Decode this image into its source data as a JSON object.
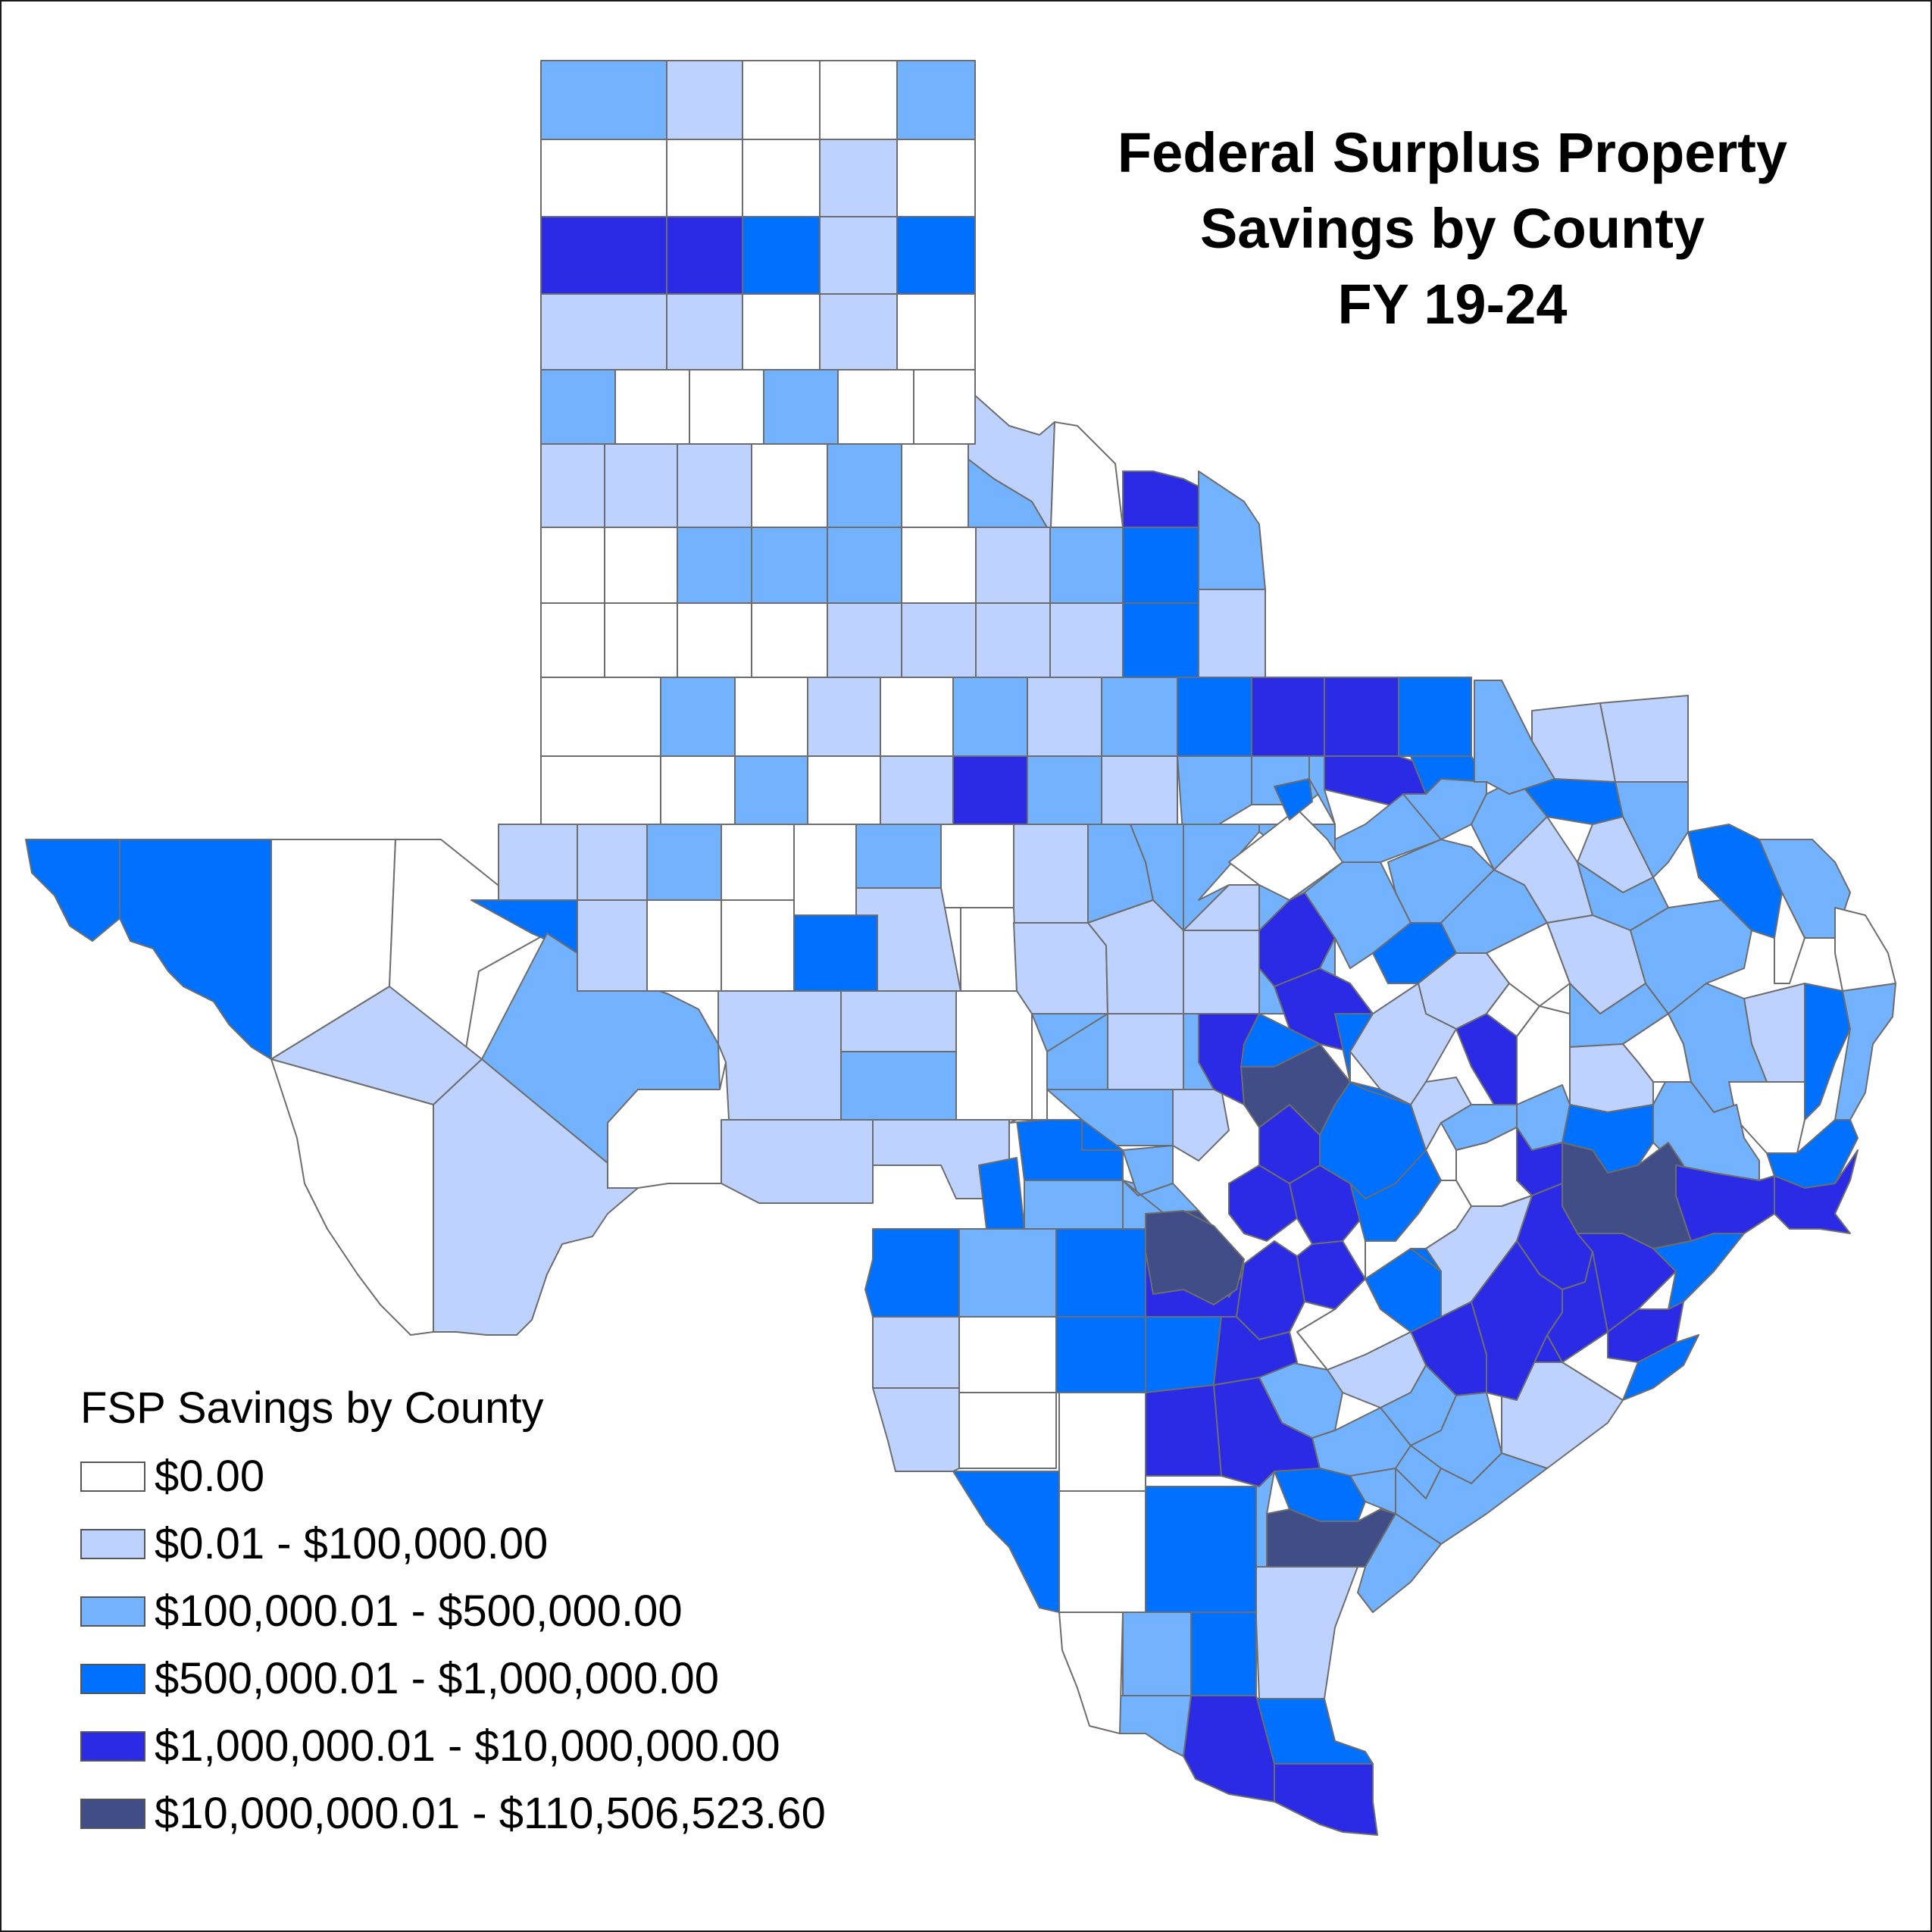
{
  "map": {
    "title_lines": [
      "Federal Surplus Property",
      "Savings by County",
      "FY 19-24"
    ]
  },
  "legend": {
    "title": "FSP Savings by County",
    "classes": [
      {
        "label": "$0.00",
        "color": "#ffffff"
      },
      {
        "label": "$0.01 - $100,000.00",
        "color": "#bed2ff"
      },
      {
        "label": "$100,000.01 - $500,000.00",
        "color": "#73b2ff"
      },
      {
        "label": "$500,000.01 - $1,000,000.00",
        "color": "#0070ff"
      },
      {
        "label": "$1,000,000.01 - $10,000,000.00",
        "color": "#2b2be6"
      },
      {
        "label": "$10,000,000.01 - $110,506,523.60",
        "color": "#414d86"
      }
    ]
  },
  "colors": {
    "county_border": "#6d6d6d",
    "frame_border": "#1a1a1a",
    "background": "#ffffff"
  }
}
